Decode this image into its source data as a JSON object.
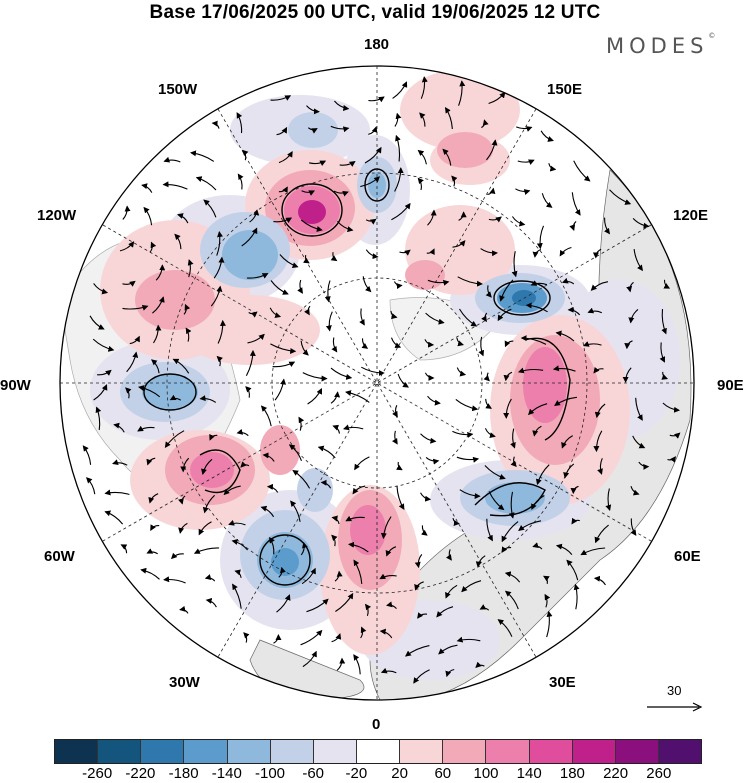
{
  "title": "Base 17/06/2025 00 UTC, valid 19/06/2025 12 UTC",
  "logo_text": "MODES",
  "logo_mark": "©",
  "lon_labels": {
    "n180": "180",
    "w150": "150W",
    "e150": "150E",
    "w120": "120W",
    "e120": "120E",
    "w90": "90W",
    "e90": "90E",
    "w60": "60W",
    "e60": "60E",
    "w30": "30W",
    "e30": "30E",
    "s0": "0"
  },
  "reference_vector": "30",
  "colorbar": {
    "colors": [
      "#0d3350",
      "#14557e",
      "#2e78ad",
      "#5b9ccd",
      "#8fb9dc",
      "#c3d1e8",
      "#e5e3f0",
      "#ffffff",
      "#f8d6d8",
      "#f2aab8",
      "#ec7fac",
      "#e04d9c",
      "#c0208a",
      "#8c0f7e",
      "#52106e"
    ],
    "ticks": [
      "-260",
      "-220",
      "-180",
      "-140",
      "-100",
      "-60",
      "-20",
      "20",
      "60",
      "100",
      "140",
      "180",
      "220",
      "260"
    ]
  }
}
